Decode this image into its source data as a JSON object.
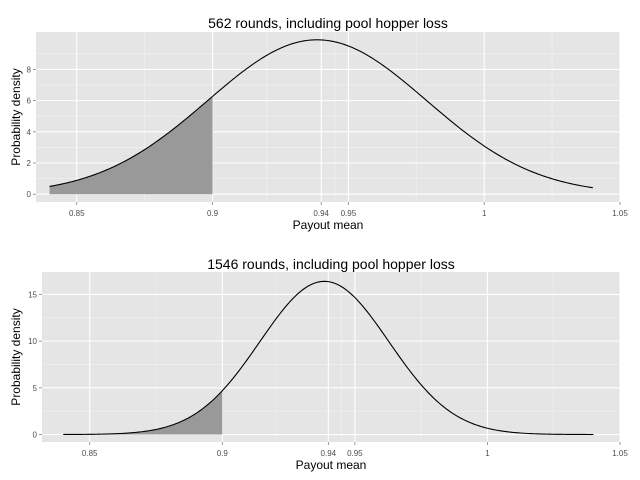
{
  "chart_data": [
    {
      "type": "area",
      "title": "562 rounds, including pool hopper loss",
      "xlabel": "Payout mean",
      "ylabel": "Probability density",
      "xlim": [
        0.835,
        1.05
      ],
      "ylim": [
        -0.5,
        10.4
      ],
      "x_ticks": [
        0.85,
        0.9,
        0.94,
        0.95,
        1,
        1.05
      ],
      "x_tick_labels": [
        "0.85",
        "0.9",
        "0.94",
        "0.95",
        "1",
        "1.05"
      ],
      "y_ticks": [
        0,
        2,
        4,
        6,
        8
      ],
      "y_tick_labels": [
        "0",
        "2",
        "4",
        "6",
        "8"
      ],
      "curve": {
        "mean": 0.9385,
        "peak_density": 9.9,
        "x_start": 0.84,
        "x_end": 1.04
      },
      "shaded_region": {
        "from": 0.84,
        "to": 0.9
      },
      "grid": true,
      "legend": "none"
    },
    {
      "type": "area",
      "title": "1546 rounds, including pool hopper loss",
      "xlabel": "Payout mean",
      "ylabel": "Probability density",
      "xlim": [
        0.832,
        1.05
      ],
      "ylim": [
        -0.8,
        17.4
      ],
      "x_ticks": [
        0.85,
        0.9,
        0.94,
        0.95,
        1,
        1.05
      ],
      "x_tick_labels": [
        "0.85",
        "0.9",
        "0.94",
        "0.95",
        "1",
        "1.05"
      ],
      "y_ticks": [
        0,
        5,
        10,
        15
      ],
      "y_tick_labels": [
        "0",
        "5",
        "10",
        "15"
      ],
      "curve": {
        "mean": 0.9385,
        "peak_density": 16.4,
        "x_start": 0.84,
        "x_end": 1.04
      },
      "shaded_region": {
        "from": 0.84,
        "to": 0.9
      },
      "grid": true,
      "legend": "none"
    }
  ]
}
